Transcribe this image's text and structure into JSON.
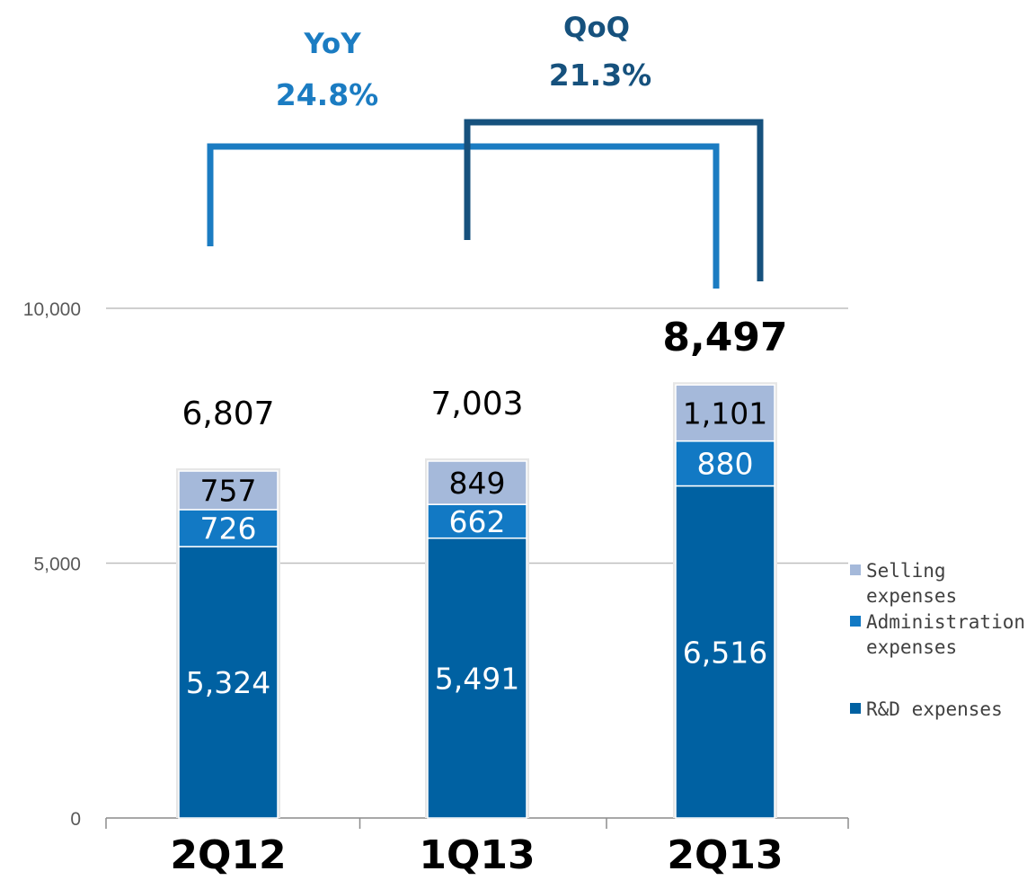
{
  "chart_data": {
    "type": "bar",
    "stacked": true,
    "categories": [
      "2Q12",
      "1Q13",
      "2Q13"
    ],
    "series": [
      {
        "name": "R&D expenses",
        "values": [
          5324,
          5491,
          6516
        ],
        "color": "#0061A2",
        "label_color": "#ffffff"
      },
      {
        "name": "Administration expenses",
        "values": [
          726,
          662,
          880
        ],
        "color": "#1279C4",
        "label_color": "#ffffff"
      },
      {
        "name": "Selling expenses",
        "values": [
          757,
          849,
          1101
        ],
        "color": "#A5B9DA",
        "label_color": "#000000"
      }
    ],
    "series_labels": [
      [
        "5,324",
        "5,491",
        "6,516"
      ],
      [
        "726",
        "662",
        "880"
      ],
      [
        "757",
        "849",
        "1,101"
      ]
    ],
    "totals": [
      6807,
      7003,
      8497
    ],
    "total_labels": [
      "6,807",
      "7,003",
      "8,497"
    ],
    "highlight_total_index": 2,
    "y_ticks": [
      0,
      5000,
      10000
    ],
    "y_tick_labels": [
      "0",
      "5,000",
      "10,000"
    ],
    "ylim": [
      0,
      10000
    ],
    "grid": true,
    "legend_position": "right",
    "legend": [
      {
        "lines": [
          "Selling",
          "expenses"
        ],
        "color": "#A5B9DA"
      },
      {
        "lines": [
          "Administration",
          "expenses"
        ],
        "color": "#1279C4"
      },
      {
        "lines": [
          "R&D expenses"
        ],
        "color": "#0061A2"
      }
    ],
    "annotations": [
      {
        "name": "YoY",
        "value": "24.8%",
        "from_index": 0,
        "to_index": 2,
        "color": "#1B7CC2"
      },
      {
        "name": "QoQ",
        "value": "21.3%",
        "from_index": 1,
        "to_index": 2,
        "color": "#16517D"
      }
    ]
  }
}
